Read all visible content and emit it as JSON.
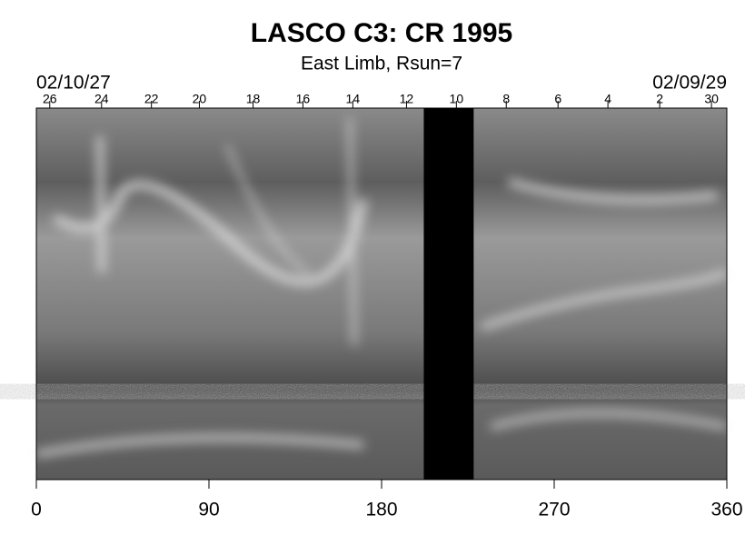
{
  "chart_data": {
    "type": "synoptic-map",
    "title": "LASCO C3: CR 1995",
    "subtitle": "East Limb, Rsun=7",
    "start_date": "02/10/27",
    "end_date": "02/09/29",
    "xlim": [
      0,
      360
    ],
    "xticks": [
      0,
      90,
      180,
      270,
      360
    ],
    "top_ticks": [
      {
        "value": 7,
        "label": "26"
      },
      {
        "value": 34,
        "label": "24"
      },
      {
        "value": 60,
        "label": "22"
      },
      {
        "value": 85,
        "label": "20"
      },
      {
        "value": 113,
        "label": "18"
      },
      {
        "value": 139,
        "label": "16"
      },
      {
        "value": 165,
        "label": "14"
      },
      {
        "value": 193,
        "label": "12"
      },
      {
        "value": 219,
        "label": "10"
      },
      {
        "value": 245,
        "label": "8"
      },
      {
        "value": 272,
        "label": "6"
      },
      {
        "value": 298,
        "label": "4"
      },
      {
        "value": 325,
        "label": "2"
      },
      {
        "value": 352,
        "label": "30"
      }
    ],
    "data_gap": [
      202,
      228
    ]
  }
}
